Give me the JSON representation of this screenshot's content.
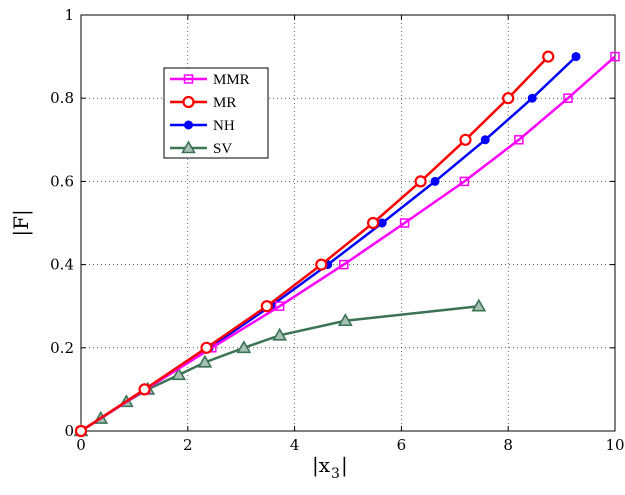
{
  "chart_data": {
    "type": "line",
    "xlabel": "|x",
    "xlabel_sub": "3",
    "xlabel_close": "|",
    "ylabel": "|F|",
    "xlim": [
      0,
      10
    ],
    "ylim": [
      0,
      1
    ],
    "xticks": [
      0,
      2,
      4,
      6,
      8,
      10
    ],
    "yticks": [
      0,
      0.2,
      0.4,
      0.6,
      0.8,
      1
    ],
    "xtick_labels": [
      "0",
      "2",
      "4",
      "6",
      "8",
      "10"
    ],
    "ytick_labels": [
      "0",
      "0.2",
      "0.4",
      "0.6",
      "0.8",
      "1"
    ],
    "grid": true,
    "legend_position": "top-left",
    "series": [
      {
        "name": "MMR",
        "color": "#ff00ff",
        "marker": "square",
        "x": [
          0,
          1.21,
          2.45,
          3.72,
          4.92,
          6.06,
          7.18,
          8.2,
          9.12,
          10.0
        ],
        "y": [
          0,
          0.1,
          0.2,
          0.3,
          0.4,
          0.5,
          0.6,
          0.7,
          0.8,
          0.9
        ]
      },
      {
        "name": "MR",
        "color": "#ff0000",
        "marker": "circle",
        "x": [
          0,
          1.19,
          2.35,
          3.48,
          4.5,
          5.47,
          6.36,
          7.2,
          8.0,
          8.75
        ],
        "y": [
          0,
          0.1,
          0.2,
          0.3,
          0.4,
          0.5,
          0.6,
          0.7,
          0.8,
          0.9
        ]
      },
      {
        "name": "NH",
        "color": "#0000ff",
        "marker": "dot",
        "x": [
          0,
          1.2,
          2.4,
          3.55,
          4.62,
          5.64,
          6.63,
          7.57,
          8.45,
          9.27
        ],
        "y": [
          0,
          0.1,
          0.2,
          0.3,
          0.4,
          0.5,
          0.6,
          0.7,
          0.8,
          0.9
        ]
      },
      {
        "name": "SV",
        "color": "#3b7355",
        "marker": "triangle",
        "x": [
          0,
          0.37,
          0.85,
          1.25,
          1.83,
          2.32,
          3.05,
          3.72,
          4.95,
          7.45
        ],
        "y": [
          0,
          0.03,
          0.07,
          0.1,
          0.135,
          0.165,
          0.2,
          0.23,
          0.265,
          0.3
        ]
      }
    ]
  }
}
